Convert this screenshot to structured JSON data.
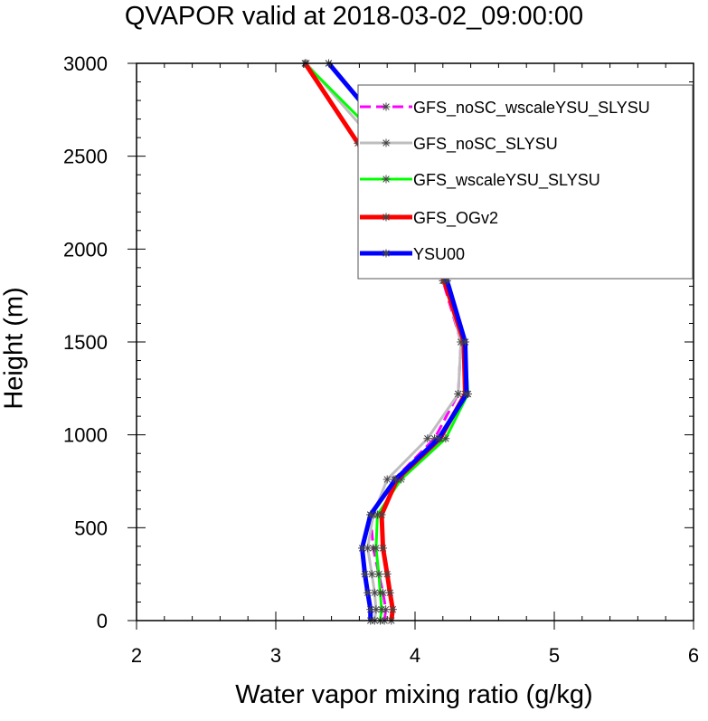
{
  "chart_data": {
    "type": "line",
    "title": "QVAPOR valid at 2018-03-02_09:00:00",
    "xlabel": "Water vapor mixing ratio (g/kg)",
    "ylabel": "Height (m)",
    "xlim": [
      2,
      6
    ],
    "ylim": [
      0,
      3000
    ],
    "xticks": [
      "2",
      "3",
      "4",
      "5",
      "6"
    ],
    "yticks": [
      "0",
      "500",
      "1000",
      "1500",
      "2000",
      "2500",
      "3000"
    ],
    "legend_position": "top-right",
    "series": [
      {
        "name": "GFS_noSC_wscaleYSU_SLYSU",
        "color": "#ff00ff",
        "dash": "dashed",
        "points": [
          [
            3.78,
            0
          ],
          [
            3.79,
            60
          ],
          [
            3.77,
            150
          ],
          [
            3.74,
            250
          ],
          [
            3.7,
            390
          ],
          [
            3.68,
            570
          ],
          [
            3.85,
            760
          ],
          [
            4.14,
            980
          ],
          [
            4.31,
            1220
          ],
          [
            4.33,
            1500
          ],
          [
            4.2,
            1830
          ],
          [
            4.08,
            2200
          ],
          [
            3.86,
            2570
          ],
          [
            3.38,
            3000
          ]
        ]
      },
      {
        "name": "GFS_noSC_SLYSU",
        "color": "#bebebe",
        "dash": "solid",
        "points": [
          [
            3.71,
            0
          ],
          [
            3.72,
            60
          ],
          [
            3.71,
            150
          ],
          [
            3.69,
            250
          ],
          [
            3.66,
            390
          ],
          [
            3.7,
            570
          ],
          [
            3.8,
            760
          ],
          [
            4.09,
            980
          ],
          [
            4.31,
            1220
          ],
          [
            4.33,
            1500
          ],
          [
            4.21,
            1830
          ],
          [
            4.01,
            2200
          ],
          [
            3.72,
            2570
          ],
          [
            3.22,
            3000
          ]
        ]
      },
      {
        "name": "GFS_wscaleYSU_SLYSU",
        "color": "#00ff00",
        "dash": "solid",
        "points": [
          [
            3.75,
            0
          ],
          [
            3.76,
            60
          ],
          [
            3.75,
            150
          ],
          [
            3.74,
            250
          ],
          [
            3.72,
            390
          ],
          [
            3.73,
            570
          ],
          [
            3.9,
            760
          ],
          [
            4.22,
            980
          ],
          [
            4.38,
            1220
          ],
          [
            4.36,
            1500
          ],
          [
            4.22,
            1830
          ],
          [
            3.99,
            2200
          ],
          [
            3.78,
            2570
          ],
          [
            3.21,
            3000
          ]
        ]
      },
      {
        "name": "GFS_OGv2",
        "color": "#ff0000",
        "dash": "solid",
        "points": [
          [
            3.83,
            0
          ],
          [
            3.84,
            60
          ],
          [
            3.82,
            150
          ],
          [
            3.8,
            250
          ],
          [
            3.77,
            390
          ],
          [
            3.76,
            570
          ],
          [
            3.87,
            760
          ],
          [
            4.18,
            980
          ],
          [
            4.36,
            1220
          ],
          [
            4.35,
            1500
          ],
          [
            4.21,
            1830
          ],
          [
            4.0,
            2200
          ],
          [
            3.59,
            2570
          ],
          [
            3.21,
            3000
          ]
        ]
      },
      {
        "name": "YSU00",
        "color": "#0000ff",
        "dash": "solid",
        "points": [
          [
            3.68,
            0
          ],
          [
            3.68,
            60
          ],
          [
            3.66,
            150
          ],
          [
            3.64,
            250
          ],
          [
            3.62,
            390
          ],
          [
            3.68,
            570
          ],
          [
            3.86,
            760
          ],
          [
            4.17,
            980
          ],
          [
            4.37,
            1220
          ],
          [
            4.36,
            1500
          ],
          [
            4.23,
            1830
          ],
          [
            4.05,
            2200
          ],
          [
            3.86,
            2570
          ],
          [
            3.38,
            3000
          ]
        ]
      }
    ]
  }
}
